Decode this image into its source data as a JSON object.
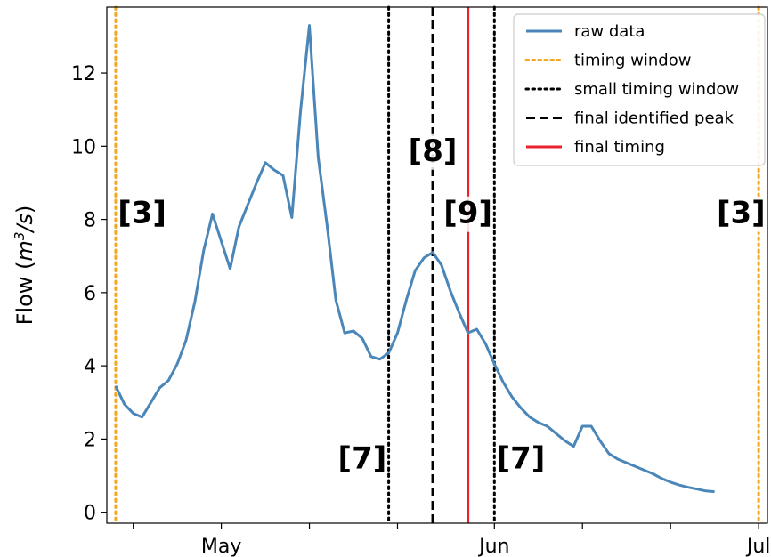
{
  "chart_data": {
    "type": "line",
    "ylabel_prefix": "Flow (",
    "ylabel_unit": "m",
    "ylabel_exp": "3",
    "ylabel_per": "/s",
    "ylabel_suffix": ")",
    "ylim": [
      -0.3,
      13.8
    ],
    "yticks": [
      0,
      2,
      4,
      6,
      8,
      10,
      12
    ],
    "x_range": [
      "2000-04-18",
      "2000-07-02"
    ],
    "xticks": [
      {
        "date": "2000-04-21",
        "label": ""
      },
      {
        "date": "2000-05-01",
        "label": "May"
      },
      {
        "date": "2000-05-11",
        "label": ""
      },
      {
        "date": "2000-05-21",
        "label": ""
      },
      {
        "date": "2000-06-01",
        "label": "Jun"
      },
      {
        "date": "2000-06-11",
        "label": ""
      },
      {
        "date": "2000-06-21",
        "label": ""
      },
      {
        "date": "2000-07-01",
        "label": "Jul"
      }
    ],
    "series": [
      {
        "name": "raw data",
        "color": "#4a86b8",
        "style": "solid",
        "points": [
          [
            "2000-04-19",
            3.45
          ],
          [
            "2000-04-20",
            2.95
          ],
          [
            "2000-04-21",
            2.7
          ],
          [
            "2000-04-22",
            2.6
          ],
          [
            "2000-04-23",
            3.0
          ],
          [
            "2000-04-24",
            3.4
          ],
          [
            "2000-04-25",
            3.6
          ],
          [
            "2000-04-26",
            4.05
          ],
          [
            "2000-04-27",
            4.7
          ],
          [
            "2000-04-28",
            5.75
          ],
          [
            "2000-04-29",
            7.15
          ],
          [
            "2000-04-30",
            8.15
          ],
          [
            "2000-05-01",
            7.4
          ],
          [
            "2000-05-02",
            6.65
          ],
          [
            "2000-05-03",
            7.8
          ],
          [
            "2000-05-04",
            8.4
          ],
          [
            "2000-05-05",
            9.0
          ],
          [
            "2000-05-06",
            9.55
          ],
          [
            "2000-05-07",
            9.35
          ],
          [
            "2000-05-08",
            9.2
          ],
          [
            "2000-05-09",
            8.05
          ],
          [
            "2000-05-10",
            11.0
          ],
          [
            "2000-05-11",
            13.3
          ],
          [
            "2000-05-12",
            9.7
          ],
          [
            "2000-05-13",
            7.85
          ],
          [
            "2000-05-14",
            5.8
          ],
          [
            "2000-05-15",
            4.9
          ],
          [
            "2000-05-16",
            4.95
          ],
          [
            "2000-05-17",
            4.75
          ],
          [
            "2000-05-18",
            4.25
          ],
          [
            "2000-05-19",
            4.18
          ],
          [
            "2000-05-20",
            4.35
          ],
          [
            "2000-05-21",
            4.9
          ],
          [
            "2000-05-22",
            5.8
          ],
          [
            "2000-05-23",
            6.6
          ],
          [
            "2000-05-24",
            6.95
          ],
          [
            "2000-05-25",
            7.1
          ],
          [
            "2000-05-26",
            6.75
          ],
          [
            "2000-05-27",
            6.05
          ],
          [
            "2000-05-28",
            5.45
          ],
          [
            "2000-05-29",
            4.9
          ],
          [
            "2000-05-30",
            5.0
          ],
          [
            "2000-05-31",
            4.6
          ],
          [
            "2000-06-01",
            4.05
          ],
          [
            "2000-06-02",
            3.55
          ],
          [
            "2000-06-03",
            3.15
          ],
          [
            "2000-06-04",
            2.85
          ],
          [
            "2000-06-05",
            2.6
          ],
          [
            "2000-06-06",
            2.45
          ],
          [
            "2000-06-07",
            2.35
          ],
          [
            "2000-06-08",
            2.15
          ],
          [
            "2000-06-09",
            1.95
          ],
          [
            "2000-06-10",
            1.8
          ],
          [
            "2000-06-11",
            2.35
          ],
          [
            "2000-06-12",
            2.35
          ],
          [
            "2000-06-13",
            1.95
          ],
          [
            "2000-06-14",
            1.6
          ],
          [
            "2000-06-15",
            1.45
          ],
          [
            "2000-06-16",
            1.35
          ],
          [
            "2000-06-17",
            1.25
          ],
          [
            "2000-06-18",
            1.15
          ],
          [
            "2000-06-19",
            1.05
          ],
          [
            "2000-06-20",
            0.92
          ],
          [
            "2000-06-21",
            0.82
          ],
          [
            "2000-06-22",
            0.74
          ],
          [
            "2000-06-23",
            0.68
          ],
          [
            "2000-06-24",
            0.63
          ],
          [
            "2000-06-25",
            0.58
          ],
          [
            "2000-06-26",
            0.56
          ]
        ]
      }
    ],
    "vlines": [
      {
        "name": "timing window",
        "date": "2000-04-19",
        "color": "#f5a623",
        "style": "dotted"
      },
      {
        "name": "timing window",
        "date": "2000-07-01",
        "color": "#f5a623",
        "style": "dotted"
      },
      {
        "name": "small timing window",
        "date": "2000-05-20",
        "color": "#000000",
        "style": "dotted"
      },
      {
        "name": "small timing window",
        "date": "2000-06-01",
        "color": "#000000",
        "style": "dotted"
      },
      {
        "name": "final identified peak",
        "date": "2000-05-25",
        "color": "#000000",
        "style": "dashed"
      },
      {
        "name": "final timing",
        "date": "2000-05-29",
        "color": "#e8232f",
        "style": "solid"
      }
    ],
    "legend": {
      "placement": "top-right",
      "entries": [
        {
          "label": "raw data",
          "color": "#4a86b8",
          "style": "solid"
        },
        {
          "label": "timing window",
          "color": "#f5a623",
          "style": "dotted"
        },
        {
          "label": "small timing window",
          "color": "#000000",
          "style": "dotted"
        },
        {
          "label": "final identified peak",
          "color": "#000000",
          "style": "dashed"
        },
        {
          "label": "final timing",
          "color": "#e8232f",
          "style": "solid"
        }
      ]
    },
    "annotations": [
      {
        "text": "[3]",
        "date": "2000-04-22",
        "y": 7.9
      },
      {
        "text": "[8]",
        "date": "2000-05-25",
        "y": 9.6
      },
      {
        "text": "[9]",
        "date": "2000-05-29",
        "y": 7.9
      },
      {
        "text": "[3]",
        "date": "2000-06-29",
        "y": 7.9
      },
      {
        "text": "[7]",
        "date": "2000-05-17",
        "y": 1.2
      },
      {
        "text": "[7]",
        "date": "2000-06-04",
        "y": 1.2
      }
    ]
  }
}
